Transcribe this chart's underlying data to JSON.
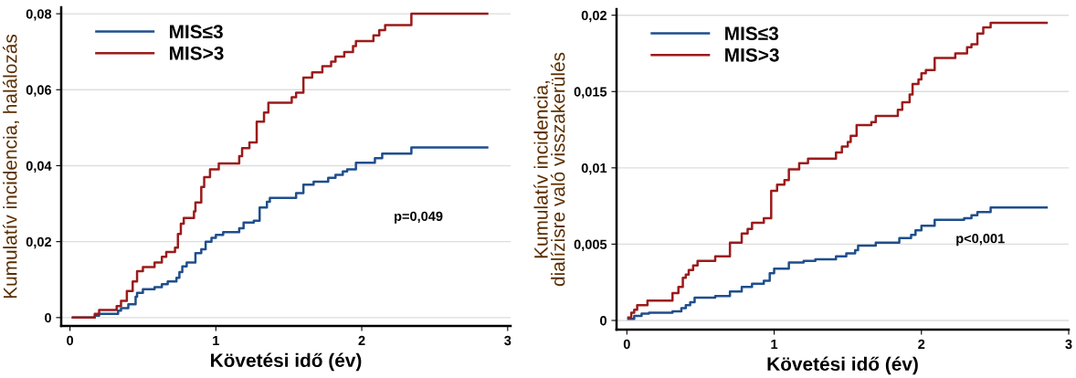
{
  "chart_data": [
    {
      "type": "step",
      "xlabel": "Követési idő (év)",
      "ylabel": "Kumulatív incidencia, halálozás",
      "xlim": [
        -0.06,
        3.02
      ],
      "ylim": [
        -0.0022,
        0.0817
      ],
      "xticks": [
        0,
        1,
        2,
        3
      ],
      "yticks": [
        {
          "value": 0,
          "label": "0"
        },
        {
          "value": 0.02,
          "label": "0,02"
        },
        {
          "value": 0.04,
          "label": "0,04"
        },
        {
          "value": 0.06,
          "label": "0,06"
        },
        {
          "value": 0.08,
          "label": "0,08"
        }
      ],
      "grid": "y",
      "legend": "top left",
      "annotations": [
        "p=0,049"
      ],
      "series": [
        {
          "name": "MIS≤3",
          "color": "#1f4e8c",
          "x": [
            0.02,
            0.17,
            0.2,
            0.33,
            0.35,
            0.4,
            0.45,
            0.46,
            0.5,
            0.58,
            0.63,
            0.67,
            0.73,
            0.75,
            0.77,
            0.8,
            0.86,
            0.9,
            0.93,
            0.97,
            1.0,
            1.05,
            1.16,
            1.19,
            1.26,
            1.3,
            1.35,
            1.37,
            1.55,
            1.6,
            1.67,
            1.77,
            1.82,
            1.87,
            1.9,
            1.96,
            2.09,
            2.14,
            2.34,
            2.86
          ],
          "values": [
            0,
            0.0005,
            0.001,
            0.0018,
            0.0025,
            0.0035,
            0.0055,
            0.0065,
            0.0075,
            0.008,
            0.0088,
            0.0095,
            0.0105,
            0.012,
            0.0135,
            0.0145,
            0.017,
            0.018,
            0.02,
            0.021,
            0.0218,
            0.0225,
            0.0235,
            0.025,
            0.0255,
            0.029,
            0.0305,
            0.0315,
            0.0328,
            0.035,
            0.0358,
            0.0368,
            0.0376,
            0.0385,
            0.039,
            0.0408,
            0.042,
            0.0432,
            0.0448,
            0.0448
          ]
        },
        {
          "name": "MIS>3",
          "color": "#9b1b1b",
          "x": [
            0.02,
            0.17,
            0.2,
            0.32,
            0.35,
            0.39,
            0.43,
            0.46,
            0.5,
            0.58,
            0.63,
            0.66,
            0.72,
            0.74,
            0.76,
            0.78,
            0.85,
            0.86,
            0.9,
            0.92,
            0.96,
            1.02,
            1.16,
            1.18,
            1.23,
            1.28,
            1.33,
            1.36,
            1.52,
            1.55,
            1.6,
            1.66,
            1.73,
            1.79,
            1.82,
            1.88,
            1.94,
            1.96,
            2.08,
            2.12,
            2.16,
            2.34,
            2.86
          ],
          "values": [
            0,
            0.001,
            0.002,
            0.003,
            0.0044,
            0.007,
            0.0095,
            0.0122,
            0.0133,
            0.0145,
            0.016,
            0.0173,
            0.0184,
            0.022,
            0.0247,
            0.0262,
            0.028,
            0.0303,
            0.0344,
            0.037,
            0.039,
            0.0406,
            0.0425,
            0.0446,
            0.0461,
            0.0516,
            0.054,
            0.0566,
            0.058,
            0.0592,
            0.0632,
            0.0646,
            0.0662,
            0.0674,
            0.0687,
            0.0699,
            0.0715,
            0.0728,
            0.0743,
            0.0757,
            0.077,
            0.08,
            0.08
          ]
        }
      ]
    },
    {
      "type": "step",
      "xlabel": "Követési idő (év)",
      "ylabel": "Kumulatív incidencia,\ndialízisre való visszakerülés",
      "xlim": [
        -0.07,
        3.0
      ],
      "ylim": [
        -0.0006,
        0.0204
      ],
      "xticks": [
        0,
        1,
        2,
        3
      ],
      "yticks": [
        {
          "value": 0,
          "label": "0"
        },
        {
          "value": 0.005,
          "label": "0,005"
        },
        {
          "value": 0.01,
          "label": "0,01"
        },
        {
          "value": 0.015,
          "label": "0,015"
        },
        {
          "value": 0.02,
          "label": "0,02"
        }
      ],
      "grid": "y",
      "legend": "top left",
      "annotations": [
        "p<0,001"
      ],
      "series": [
        {
          "name": "MIS≤3",
          "color": "#1f4e8c",
          "x": [
            0.01,
            0.05,
            0.1,
            0.15,
            0.31,
            0.37,
            0.4,
            0.43,
            0.46,
            0.6,
            0.7,
            0.78,
            0.85,
            0.93,
            0.97,
            1.0,
            1.1,
            1.2,
            1.28,
            1.42,
            1.49,
            1.55,
            1.57,
            1.69,
            1.85,
            1.93,
            1.96,
            2.0,
            2.09,
            2.29,
            2.34,
            2.38,
            2.47,
            2.85
          ],
          "values": [
            0.0001,
            0.0003,
            0.00045,
            0.0005,
            0.0006,
            0.0008,
            0.001,
            0.0012,
            0.0015,
            0.0016,
            0.0019,
            0.0022,
            0.0024,
            0.0026,
            0.0031,
            0.0034,
            0.0038,
            0.0039,
            0.004,
            0.0042,
            0.0044,
            0.0046,
            0.0049,
            0.0051,
            0.0054,
            0.0056,
            0.0059,
            0.0062,
            0.0066,
            0.0067,
            0.0069,
            0.0071,
            0.0074,
            0.0074
          ]
        },
        {
          "name": "MIS>3",
          "color": "#9b1b1b",
          "x": [
            0.01,
            0.03,
            0.05,
            0.07,
            0.14,
            0.31,
            0.35,
            0.38,
            0.4,
            0.42,
            0.45,
            0.48,
            0.6,
            0.7,
            0.78,
            0.82,
            0.85,
            0.93,
            0.98,
            1.02,
            1.07,
            1.1,
            1.17,
            1.23,
            1.42,
            1.46,
            1.5,
            1.52,
            1.56,
            1.66,
            1.69,
            1.84,
            1.87,
            1.92,
            1.94,
            1.98,
            2.0,
            2.03,
            2.09,
            2.23,
            2.31,
            2.34,
            2.38,
            2.42,
            2.47,
            2.85
          ],
          "values": [
            0.0002,
            0.0005,
            0.0007,
            0.001,
            0.0013,
            0.0018,
            0.0022,
            0.0028,
            0.003,
            0.0033,
            0.0036,
            0.0039,
            0.0042,
            0.0051,
            0.0057,
            0.006,
            0.0064,
            0.0067,
            0.0085,
            0.0089,
            0.0092,
            0.0099,
            0.0103,
            0.0106,
            0.011,
            0.0114,
            0.0117,
            0.0121,
            0.0128,
            0.013,
            0.0134,
            0.0138,
            0.0143,
            0.0148,
            0.0155,
            0.0158,
            0.0162,
            0.0164,
            0.0172,
            0.0175,
            0.0179,
            0.0181,
            0.0188,
            0.0192,
            0.0195,
            0.0195
          ]
        }
      ]
    }
  ]
}
